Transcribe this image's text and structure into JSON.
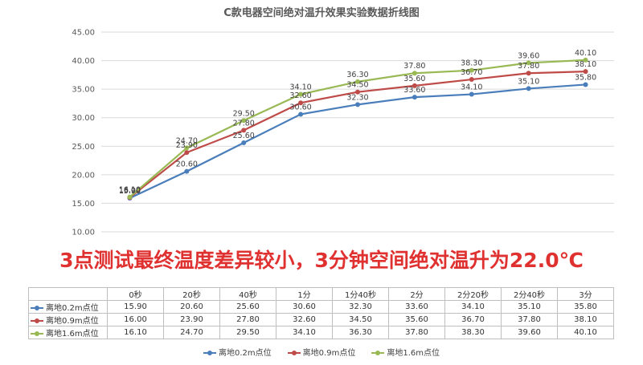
{
  "chart_data": {
    "type": "line",
    "title": "C款电器空间绝对温升效果实验数据折线图",
    "categories": [
      "0秒",
      "20秒",
      "40秒",
      "1分",
      "1分40秒",
      "2分",
      "2分20秒",
      "2分40秒",
      "3分"
    ],
    "ylim": [
      10,
      45
    ],
    "yticks": [
      "10.00",
      "15.00",
      "20.00",
      "25.00",
      "30.00",
      "35.00",
      "40.00",
      "45.00"
    ],
    "grid": true,
    "legend_position": "bottom",
    "series": [
      {
        "name": "离地0.2m点位",
        "color": "#4a7ebb",
        "values": [
          15.9,
          20.6,
          25.6,
          30.6,
          32.3,
          33.6,
          34.1,
          35.1,
          35.8
        ],
        "labels": [
          "15.90",
          "20.60",
          "25.60",
          "30.60",
          "32.30",
          "33.60",
          "34.10",
          "35.10",
          "35.80"
        ]
      },
      {
        "name": "离地0.9m点位",
        "color": "#be4b48",
        "values": [
          16.0,
          23.9,
          27.8,
          32.6,
          34.5,
          35.6,
          36.7,
          37.8,
          38.1
        ],
        "labels": [
          "16.00",
          "23.90",
          "27.80",
          "32.60",
          "34.50",
          "35.60",
          "36.70",
          "37.80",
          "38.10"
        ]
      },
      {
        "name": "离地1.6m点位",
        "color": "#98b954",
        "values": [
          16.1,
          24.7,
          29.5,
          34.1,
          36.3,
          37.8,
          38.3,
          39.6,
          40.1
        ],
        "labels": [
          "16.10",
          "24.70",
          "29.50",
          "34.10",
          "36.30",
          "37.80",
          "38.30",
          "39.60",
          "40.10"
        ]
      }
    ]
  },
  "banner_text": "3点测试最终温度差异较小，3分钟空间绝对温升为22.0℃"
}
